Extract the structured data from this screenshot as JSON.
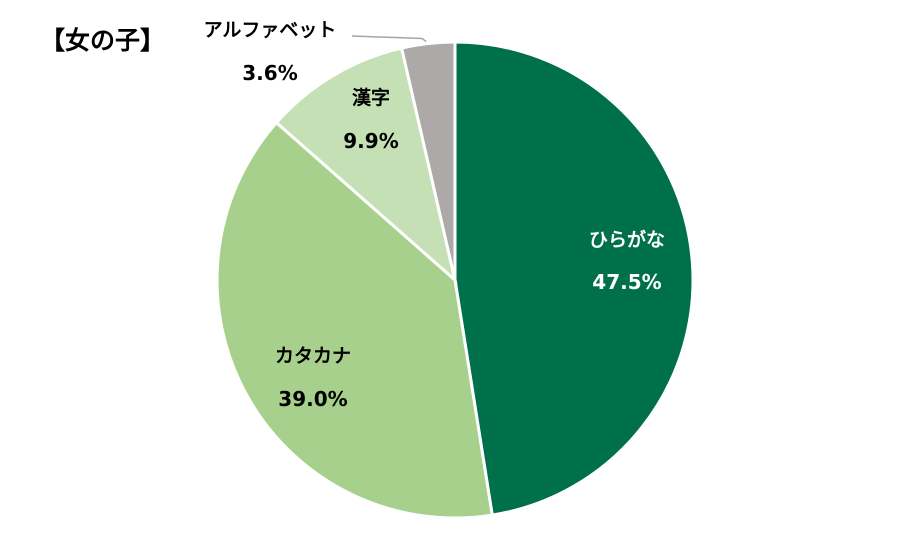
{
  "chart_data": {
    "type": "pie",
    "title": "【女の子】",
    "start": "12 o'clock",
    "direction": "clockwise",
    "slices": [
      {
        "label": "ひらがな",
        "value": 47.5,
        "value_label": "47.5%",
        "color": "#00704A",
        "text_color": "#ffffff"
      },
      {
        "label": "カタカナ",
        "value": 39.0,
        "value_label": "39.0%",
        "color": "#A8D08D",
        "text_color": "#000000"
      },
      {
        "label": "漢字",
        "value": 9.9,
        "value_label": "9.9%",
        "color": "#C5E0B4",
        "text_color": "#000000"
      },
      {
        "label": "アルファベット",
        "value": 3.6,
        "value_label": "3.6%",
        "color": "#ADA9A9",
        "text_color": "#000000"
      }
    ],
    "legend": "none"
  }
}
